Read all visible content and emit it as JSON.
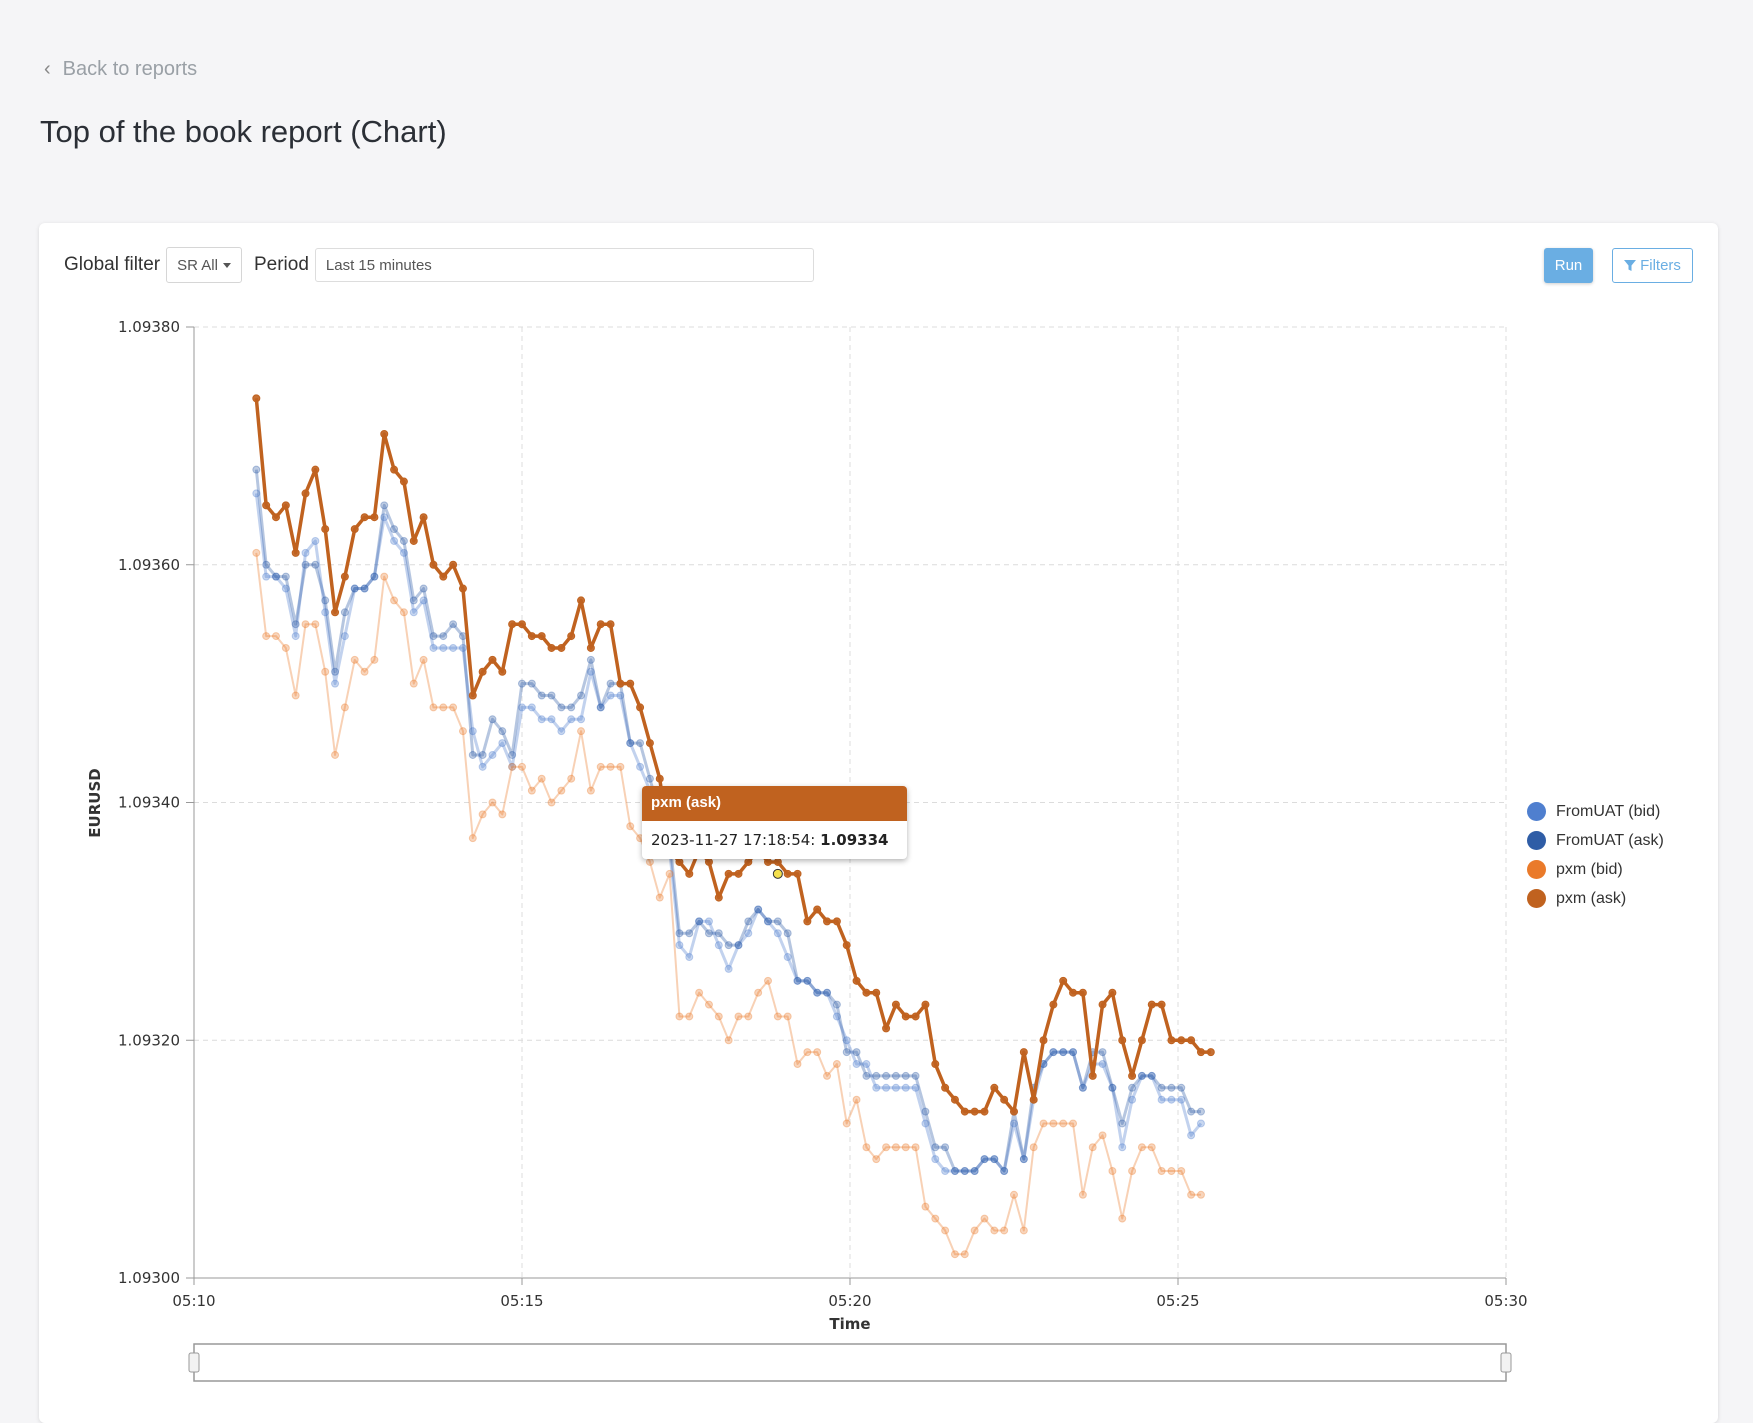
{
  "nav": {
    "back_label": "Back to reports"
  },
  "page": {
    "title": "Top of the book report (Chart)"
  },
  "filters": {
    "global_filter_label": "Global filter",
    "global_filter_value": "SR All",
    "period_label": "Period",
    "period_value": "Last 15 minutes",
    "run_label": "Run",
    "filters_label": "Filters"
  },
  "tooltip": {
    "series": "pxm (ask)",
    "timestamp": "2023-11-27 17:18:54:",
    "value": "1.09334"
  },
  "colors": {
    "accent": "#6aaee3",
    "fromuat_bid": "#4f7fcf",
    "fromuat_ask": "#2f5da6",
    "pxm_bid": "#ea7a2a",
    "pxm_ask": "#c0621f"
  },
  "chart_data": {
    "type": "line",
    "xlabel": "Time",
    "ylabel": "EURUSD",
    "x_ticks": [
      "05:10",
      "05:15",
      "05:20",
      "05:25",
      "05:30"
    ],
    "xlim": [
      "05:10",
      "05:30"
    ],
    "y_ticks": [
      "1.09300",
      "1.09320",
      "1.09340",
      "1.09360",
      "1.09380"
    ],
    "ylim": [
      1.093,
      1.0938
    ],
    "grid": true,
    "legend_position": "right",
    "x_start_minute": 0.95,
    "x_step_minutes": 0.15,
    "series": [
      {
        "name": "FromUAT (bid)",
        "color": "#4f7fcf",
        "values": [
          1.09366,
          1.09359,
          1.09359,
          1.09358,
          1.09354,
          1.09361,
          1.09362,
          1.09356,
          1.0935,
          1.09354,
          1.09358,
          1.09358,
          1.09359,
          1.09364,
          1.09362,
          1.09361,
          1.09356,
          1.09357,
          1.09353,
          1.09353,
          1.09353,
          1.09353,
          1.09346,
          1.09343,
          1.09344,
          1.09345,
          1.09343,
          1.09348,
          1.09348,
          1.09347,
          1.09347,
          1.09346,
          1.09347,
          1.09347,
          1.09351,
          1.09348,
          1.09349,
          1.09349,
          1.09345,
          1.09343,
          1.09341,
          1.09338,
          1.09336,
          1.09328,
          1.09327,
          1.0933,
          1.0933,
          1.09328,
          1.09326,
          1.09328,
          1.09329,
          1.09331,
          1.0933,
          1.09329,
          1.09327,
          1.09325,
          1.09325,
          1.09324,
          1.09324,
          1.09322,
          1.0932,
          1.09318,
          1.09318,
          1.09316,
          1.09316,
          1.09316,
          1.09316,
          1.09316,
          1.09313,
          1.0931,
          1.09309,
          1.09309,
          1.09309,
          1.09309,
          1.0931,
          1.0931,
          1.09309,
          1.09313,
          1.0931,
          1.09315,
          1.09318,
          1.09319,
          1.09319,
          1.09319,
          1.09316,
          1.09318,
          1.09318,
          1.09316,
          1.09311,
          1.09315,
          1.09317,
          1.09317,
          1.09315,
          1.09315,
          1.09315,
          1.09312,
          1.09313
        ]
      },
      {
        "name": "FromUAT (ask)",
        "color": "#2f5da6",
        "values": [
          1.09368,
          1.0936,
          1.09359,
          1.09359,
          1.09355,
          1.0936,
          1.0936,
          1.09357,
          1.09351,
          1.09356,
          1.09358,
          1.09358,
          1.09359,
          1.09365,
          1.09363,
          1.09362,
          1.09357,
          1.09358,
          1.09354,
          1.09354,
          1.09355,
          1.09354,
          1.09344,
          1.09344,
          1.09347,
          1.09346,
          1.09344,
          1.0935,
          1.0935,
          1.09349,
          1.09349,
          1.09348,
          1.09348,
          1.09349,
          1.09352,
          1.09348,
          1.0935,
          1.0935,
          1.09345,
          1.09345,
          1.09342,
          1.09339,
          1.09337,
          1.09329,
          1.09329,
          1.0933,
          1.09329,
          1.09329,
          1.09328,
          1.09328,
          1.0933,
          1.09331,
          1.0933,
          1.0933,
          1.09329,
          1.09325,
          1.09325,
          1.09324,
          1.09324,
          1.09323,
          1.09319,
          1.09319,
          1.09317,
          1.09317,
          1.09317,
          1.09317,
          1.09317,
          1.09317,
          1.09314,
          1.09311,
          1.09311,
          1.09309,
          1.09309,
          1.09309,
          1.0931,
          1.0931,
          1.09309,
          1.09314,
          1.0931,
          1.09316,
          1.09318,
          1.09319,
          1.09319,
          1.09319,
          1.09316,
          1.09319,
          1.09319,
          1.09316,
          1.09313,
          1.09316,
          1.09317,
          1.09317,
          1.09316,
          1.09316,
          1.09316,
          1.09314,
          1.09314
        ]
      },
      {
        "name": "pxm (bid)",
        "color": "#ea7a2a",
        "values": [
          1.09361,
          1.09354,
          1.09354,
          1.09353,
          1.09349,
          1.09355,
          1.09355,
          1.09351,
          1.09344,
          1.09348,
          1.09352,
          1.09351,
          1.09352,
          1.09359,
          1.09357,
          1.09356,
          1.0935,
          1.09352,
          1.09348,
          1.09348,
          1.09348,
          1.09346,
          1.09337,
          1.09339,
          1.0934,
          1.09339,
          1.09343,
          1.09343,
          1.09341,
          1.09342,
          1.0934,
          1.09341,
          1.09342,
          1.09346,
          1.09341,
          1.09343,
          1.09343,
          1.09343,
          1.09338,
          1.09337,
          1.09335,
          1.09332,
          1.09334,
          1.09322,
          1.09322,
          1.09324,
          1.09323,
          1.09322,
          1.0932,
          1.09322,
          1.09322,
          1.09324,
          1.09325,
          1.09322,
          1.09322,
          1.09318,
          1.09319,
          1.09319,
          1.09317,
          1.09318,
          1.09313,
          1.09315,
          1.09311,
          1.0931,
          1.09311,
          1.09311,
          1.09311,
          1.09311,
          1.09306,
          1.09305,
          1.09304,
          1.09302,
          1.09302,
          1.09304,
          1.09305,
          1.09304,
          1.09304,
          1.09307,
          1.09304,
          1.09311,
          1.09313,
          1.09313,
          1.09313,
          1.09313,
          1.09307,
          1.09311,
          1.09312,
          1.09309,
          1.09305,
          1.09309,
          1.09311,
          1.09311,
          1.09309,
          1.09309,
          1.09309,
          1.09307,
          1.09307
        ]
      },
      {
        "name": "pxm (ask)",
        "color": "#c0621f",
        "values": [
          1.09374,
          1.09365,
          1.09364,
          1.09365,
          1.09361,
          1.09366,
          1.09368,
          1.09363,
          1.09356,
          1.09359,
          1.09363,
          1.09364,
          1.09364,
          1.09371,
          1.09368,
          1.09367,
          1.09362,
          1.09364,
          1.0936,
          1.09359,
          1.0936,
          1.09358,
          1.09349,
          1.09351,
          1.09352,
          1.09351,
          1.09355,
          1.09355,
          1.09354,
          1.09354,
          1.09353,
          1.09353,
          1.09354,
          1.09357,
          1.09353,
          1.09355,
          1.09355,
          1.0935,
          1.0935,
          1.09348,
          1.09345,
          1.09342,
          1.09336,
          1.09335,
          1.09334,
          1.09336,
          1.09335,
          1.09332,
          1.09334,
          1.09334,
          1.09335,
          1.09336,
          1.09335,
          1.09335,
          1.09334,
          1.09334,
          1.0933,
          1.09331,
          1.0933,
          1.0933,
          1.09328,
          1.09325,
          1.09324,
          1.09324,
          1.09321,
          1.09323,
          1.09322,
          1.09322,
          1.09323,
          1.09318,
          1.09316,
          1.09315,
          1.09314,
          1.09314,
          1.09314,
          1.09316,
          1.09315,
          1.09314,
          1.09319,
          1.09315,
          1.0932,
          1.09323,
          1.09325,
          1.09324,
          1.09324,
          1.09317,
          1.09323,
          1.09324,
          1.0932,
          1.09317,
          1.0932,
          1.09323,
          1.09323,
          1.0932,
          1.0932,
          1.0932,
          1.09319,
          1.09319
        ]
      }
    ]
  }
}
